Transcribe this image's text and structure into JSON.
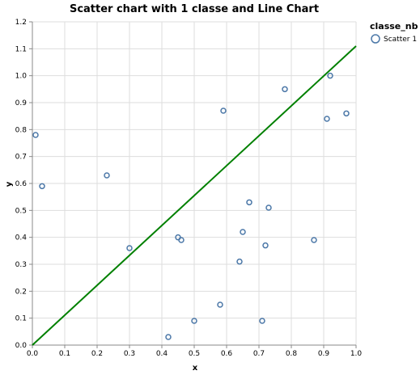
{
  "chart_data": {
    "type": "scatter",
    "title": "Scatter chart with 1 classe and Line Chart",
    "xlabel": "x",
    "ylabel": "y",
    "xlim": [
      0.0,
      1.0
    ],
    "ylim": [
      0.0,
      1.2
    ],
    "x_ticks": [
      "0.0",
      "0.1",
      "0.2",
      "0.3",
      "0.4",
      "0.5",
      "0.6",
      "0.7",
      "0.8",
      "0.9",
      "1.0"
    ],
    "y_ticks": [
      "0.0",
      "0.1",
      "0.2",
      "0.3",
      "0.4",
      "0.5",
      "0.6",
      "0.7",
      "0.8",
      "0.9",
      "1.0",
      "1.1",
      "1.2"
    ],
    "grid": true,
    "legend": {
      "title": "classe_nb",
      "placement": "top-right",
      "entries": [
        "Scatter 1"
      ]
    },
    "series": [
      {
        "name": "Scatter 1",
        "kind": "scatter",
        "color": "#4c78a8",
        "points": [
          {
            "x": 0.01,
            "y": 0.78
          },
          {
            "x": 0.03,
            "y": 0.59
          },
          {
            "x": 0.23,
            "y": 0.63
          },
          {
            "x": 0.3,
            "y": 0.36
          },
          {
            "x": 0.42,
            "y": 0.03
          },
          {
            "x": 0.45,
            "y": 0.4
          },
          {
            "x": 0.46,
            "y": 0.39
          },
          {
            "x": 0.5,
            "y": 0.09
          },
          {
            "x": 0.58,
            "y": 0.15
          },
          {
            "x": 0.59,
            "y": 0.87
          },
          {
            "x": 0.64,
            "y": 0.31
          },
          {
            "x": 0.65,
            "y": 0.42
          },
          {
            "x": 0.67,
            "y": 0.53
          },
          {
            "x": 0.71,
            "y": 0.09
          },
          {
            "x": 0.72,
            "y": 0.37
          },
          {
            "x": 0.73,
            "y": 0.51
          },
          {
            "x": 0.78,
            "y": 0.95
          },
          {
            "x": 0.87,
            "y": 0.39
          },
          {
            "x": 0.91,
            "y": 0.84
          },
          {
            "x": 0.92,
            "y": 1.0
          },
          {
            "x": 0.97,
            "y": 0.86
          }
        ]
      },
      {
        "kind": "line",
        "color": "#008000",
        "points": [
          {
            "x": 0.0,
            "y": 0.0
          },
          {
            "x": 1.0,
            "y": 1.11
          }
        ]
      }
    ]
  }
}
